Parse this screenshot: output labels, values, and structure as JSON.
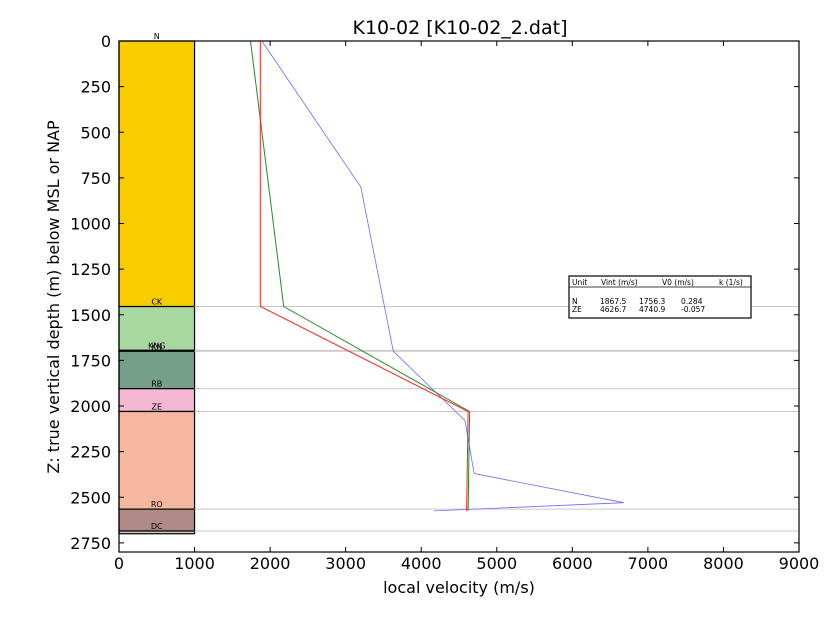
{
  "chart_data": {
    "type": "line",
    "title": "K10-02 [K10-02_2.dat]",
    "xlabel": "local velocity (m/s)",
    "ylabel": "Z: true vertical depth (m) below MSL or NAP",
    "xlim": [
      0,
      9000
    ],
    "ylim": [
      2800,
      0
    ],
    "xticks": [
      "0",
      "1000",
      "2000",
      "3000",
      "4000",
      "5000",
      "6000",
      "7000",
      "8000",
      "9000"
    ],
    "yticks": [
      "0",
      "250",
      "500",
      "750",
      "1000",
      "1250",
      "1500",
      "1750",
      "2000",
      "2250",
      "2500",
      "2750"
    ],
    "grid": false,
    "layers": [
      {
        "name": "N",
        "top": 0,
        "bottom": 1455,
        "color": "#f9cc00"
      },
      {
        "name": "CK",
        "top": 1455,
        "bottom": 1695,
        "color": "#a8d8a0"
      },
      {
        "name": "KNG",
        "top": 1695,
        "bottom": 1700,
        "color": "#a8d8a0"
      },
      {
        "name": "KN",
        "top": 1700,
        "bottom": 1905,
        "color": "#769f8a"
      },
      {
        "name": "RB",
        "top": 1905,
        "bottom": 2030,
        "color": "#f4b8d4"
      },
      {
        "name": "ZE",
        "top": 2030,
        "bottom": 2565,
        "color": "#f4b8a0"
      },
      {
        "name": "RO",
        "top": 2565,
        "bottom": 2685,
        "color": "#b08a86"
      },
      {
        "name": "DC",
        "top": 2685,
        "bottom": 2700,
        "color": "#c8c8c8"
      }
    ],
    "boundary_lines": [
      1455,
      1695,
      1700,
      1905,
      2030,
      2565,
      2685
    ],
    "series": [
      {
        "color": "#6a6aff",
        "points": [
          [
            1890,
            0
          ],
          [
            3200,
            800
          ],
          [
            3630,
            1700
          ],
          [
            4580,
            2080
          ],
          [
            4700,
            2370
          ],
          [
            6680,
            2530
          ],
          [
            4170,
            2575
          ]
        ]
      },
      {
        "color": "#228b22",
        "points": [
          [
            1740,
            0
          ],
          [
            2180,
            1455
          ],
          [
            4640,
            2030
          ],
          [
            4620,
            2575
          ]
        ]
      },
      {
        "color": "#ff2020",
        "points": [
          [
            1870,
            0
          ],
          [
            1870,
            1455
          ],
          [
            4620,
            2030
          ],
          [
            4600,
            2575
          ]
        ]
      }
    ],
    "table": {
      "header": [
        "Unit",
        "Vint (m/s)",
        "V0 (m/s)",
        "k (1/s)"
      ],
      "rows": [
        [
          "N",
          "1867.5",
          "1756.3",
          "0.284"
        ],
        [
          "ZE",
          "4626.7",
          "4740.9",
          "-0.057"
        ]
      ]
    }
  }
}
